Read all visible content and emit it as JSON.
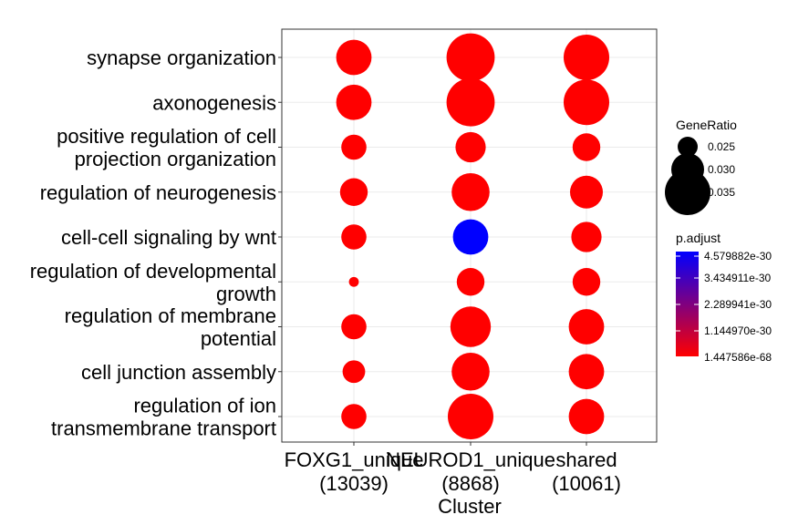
{
  "chart_data": {
    "type": "scatter",
    "xlabel": "Cluster",
    "clusters": [
      "FOXG1_unique\n(13039)",
      "NEUROD1_unique\n(8868)",
      "shared\n(10061)"
    ],
    "terms": [
      "synapse organization",
      "axonogenesis",
      "positive regulation of cell\nprojection organization",
      "regulation of neurogenesis",
      "cell-cell signaling by wnt",
      "regulation of developmental\ngrowth",
      "regulation of membrane\npotential",
      "cell junction assembly",
      "regulation of ion\ntransmembrane transport"
    ],
    "points": [
      {
        "term": 0,
        "cluster": 0,
        "gene_ratio": 0.031,
        "p_adjust": 1.447586e-68
      },
      {
        "term": 0,
        "cluster": 1,
        "gene_ratio": 0.036,
        "p_adjust": 1.447586e-68
      },
      {
        "term": 0,
        "cluster": 2,
        "gene_ratio": 0.035,
        "p_adjust": 1.447586e-68
      },
      {
        "term": 1,
        "cluster": 0,
        "gene_ratio": 0.031,
        "p_adjust": 1.447586e-68
      },
      {
        "term": 1,
        "cluster": 1,
        "gene_ratio": 0.036,
        "p_adjust": 1.447586e-68
      },
      {
        "term": 1,
        "cluster": 2,
        "gene_ratio": 0.035,
        "p_adjust": 1.447586e-68
      },
      {
        "term": 2,
        "cluster": 0,
        "gene_ratio": 0.027,
        "p_adjust": 1.447586e-68
      },
      {
        "term": 2,
        "cluster": 1,
        "gene_ratio": 0.029,
        "p_adjust": 1.447586e-68
      },
      {
        "term": 2,
        "cluster": 2,
        "gene_ratio": 0.028,
        "p_adjust": 1.447586e-68
      },
      {
        "term": 3,
        "cluster": 0,
        "gene_ratio": 0.028,
        "p_adjust": 1.447586e-68
      },
      {
        "term": 3,
        "cluster": 1,
        "gene_ratio": 0.032,
        "p_adjust": 1.447586e-68
      },
      {
        "term": 3,
        "cluster": 2,
        "gene_ratio": 0.03,
        "p_adjust": 1.447586e-68
      },
      {
        "term": 4,
        "cluster": 0,
        "gene_ratio": 0.027,
        "p_adjust": 1.447586e-68
      },
      {
        "term": 4,
        "cluster": 1,
        "gene_ratio": 0.031,
        "p_adjust": 4.579882e-30
      },
      {
        "term": 4,
        "cluster": 2,
        "gene_ratio": 0.029,
        "p_adjust": 1.447586e-68
      },
      {
        "term": 5,
        "cluster": 0,
        "gene_ratio": 0.021,
        "p_adjust": 1.447586e-68
      },
      {
        "term": 5,
        "cluster": 1,
        "gene_ratio": 0.028,
        "p_adjust": 1.447586e-68
      },
      {
        "term": 5,
        "cluster": 2,
        "gene_ratio": 0.028,
        "p_adjust": 1.447586e-68
      },
      {
        "term": 6,
        "cluster": 0,
        "gene_ratio": 0.027,
        "p_adjust": 1.447586e-68
      },
      {
        "term": 6,
        "cluster": 1,
        "gene_ratio": 0.033,
        "p_adjust": 1.447586e-68
      },
      {
        "term": 6,
        "cluster": 2,
        "gene_ratio": 0.031,
        "p_adjust": 1.447586e-68
      },
      {
        "term": 7,
        "cluster": 0,
        "gene_ratio": 0.026,
        "p_adjust": 1.447586e-68
      },
      {
        "term": 7,
        "cluster": 1,
        "gene_ratio": 0.032,
        "p_adjust": 1.447586e-68
      },
      {
        "term": 7,
        "cluster": 2,
        "gene_ratio": 0.031,
        "p_adjust": 1.447586e-68
      },
      {
        "term": 8,
        "cluster": 0,
        "gene_ratio": 0.027,
        "p_adjust": 1.447586e-68
      },
      {
        "term": 8,
        "cluster": 1,
        "gene_ratio": 0.035,
        "p_adjust": 1.447586e-68
      },
      {
        "term": 8,
        "cluster": 2,
        "gene_ratio": 0.031,
        "p_adjust": 1.447586e-68
      }
    ],
    "size_legend": {
      "title": "GeneRatio",
      "values": [
        0.025,
        0.03,
        0.035
      ],
      "labels": [
        "0.025",
        "0.030",
        "0.035"
      ]
    },
    "color_legend": {
      "title": "p.adjust",
      "labels": [
        "4.579882e-30",
        "3.434911e-30",
        "2.289941e-30",
        "1.144970e-30",
        "1.447586e-68"
      ],
      "high_color": "#0000FF",
      "low_color": "#FF0000",
      "min": 1.447586e-68,
      "max": 4.579882e-30
    },
    "grid": true,
    "legend_position": "right"
  }
}
